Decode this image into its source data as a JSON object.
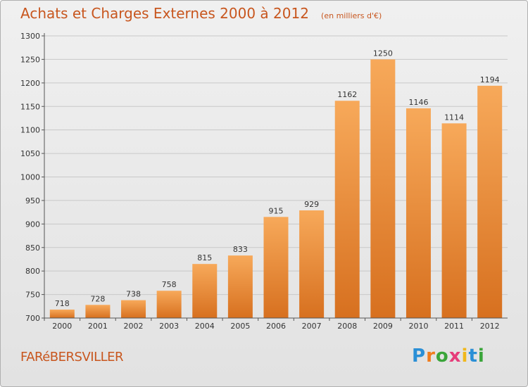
{
  "title": "Achats et Charges Externes 2000 à 2012",
  "subtitle": "(en milliers d'€)",
  "place": "FARéBERSVILLER",
  "logo": {
    "text": "Proxiti",
    "colors": [
      "#2a8fd6",
      "#f07c1c",
      "#3aa53a",
      "#e63d7a",
      "#f0b81c",
      "#2a8fd6",
      "#3aa53a"
    ]
  },
  "colors": {
    "bar_top": "#f7a95a",
    "bar_bottom": "#d7701f",
    "text": "#c8561e"
  },
  "chart_data": {
    "type": "bar",
    "categories": [
      "2000",
      "2001",
      "2002",
      "2003",
      "2004",
      "2005",
      "2006",
      "2007",
      "2008",
      "2009",
      "2010",
      "2011",
      "2012"
    ],
    "values": [
      718,
      728,
      738,
      758,
      815,
      833,
      915,
      929,
      1162,
      1250,
      1146,
      1114,
      1194
    ],
    "data_labels": [
      "718",
      "728",
      "738",
      "758",
      "815",
      "833",
      "915",
      "929",
      "1162",
      "1250",
      "1146",
      "1114",
      "1194"
    ],
    "title": "Achats et Charges Externes 2000 à 2012",
    "xlabel": "",
    "ylabel": "",
    "ylim": [
      700,
      1300
    ],
    "yticks": [
      700,
      750,
      800,
      850,
      900,
      950,
      1000,
      1050,
      1100,
      1150,
      1200,
      1250,
      1300
    ],
    "grid": true
  }
}
